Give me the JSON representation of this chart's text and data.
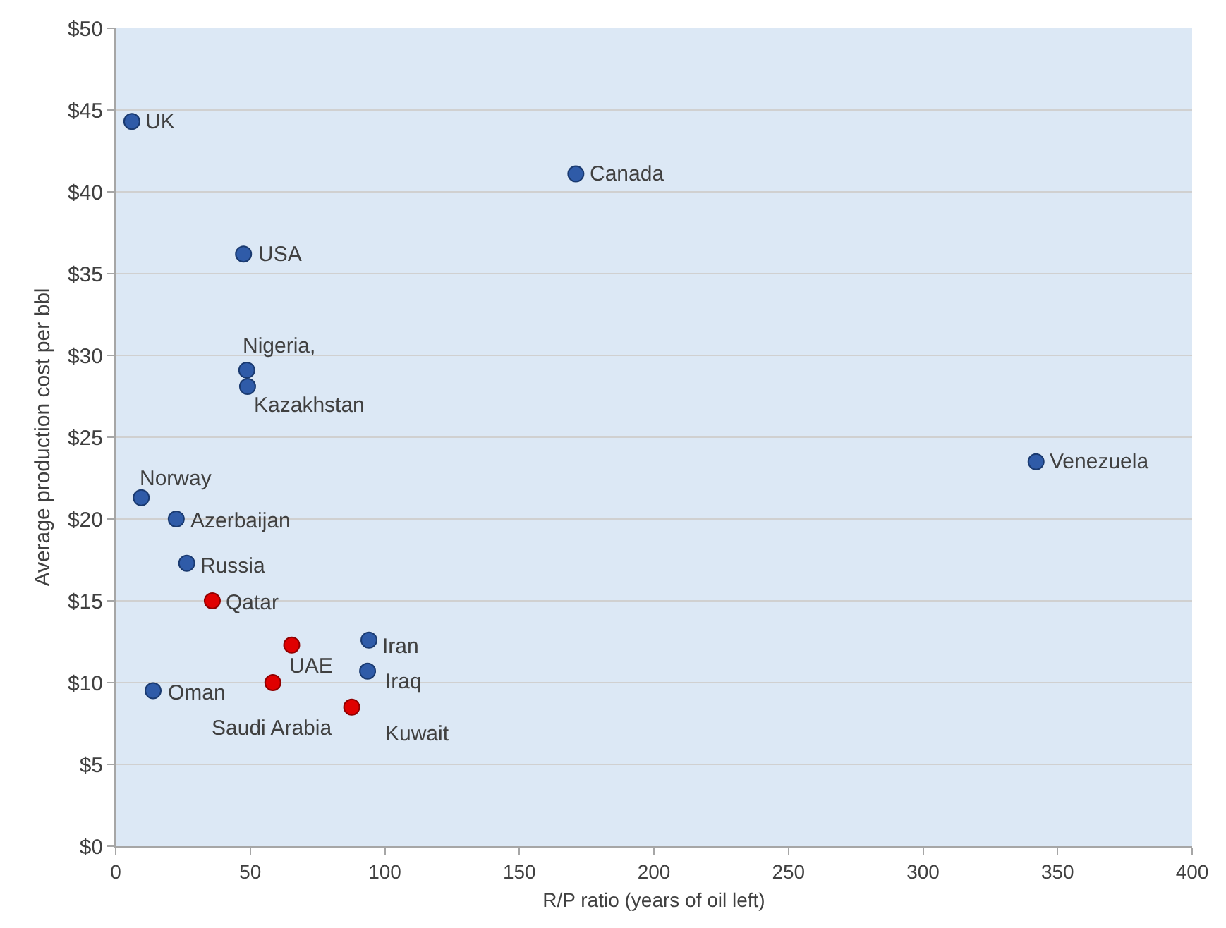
{
  "chart_data": {
    "type": "scatter",
    "xlabel": "R/P ratio (years of oil left)",
    "ylabel": "Average production cost per bbl",
    "series": [
      {
        "color": "#2f5ba8",
        "x": [
          6,
          171,
          47.5,
          48.7,
          49,
          342,
          9.5,
          22.5,
          26.4,
          94.1,
          93.6,
          13.9
        ],
        "values": [
          44.3,
          41.1,
          36.2,
          29.1,
          28.1,
          23.5,
          21.3,
          20.0,
          17.3,
          12.6,
          10.7,
          9.5
        ]
      },
      {
        "color": "#e00000",
        "x": [
          35.9,
          65.4,
          58.4,
          87.7
        ],
        "values": [
          15.0,
          12.3,
          10.0,
          8.5
        ]
      }
    ],
    "annotations": [
      {
        "text": "UK",
        "x": 6,
        "y": 44.3
      },
      {
        "text": "Canada",
        "x": 171,
        "y": 41.1
      },
      {
        "text": "USA",
        "x": 47.5,
        "y": 36.2
      },
      {
        "text": "Nigeria,",
        "x": 48.7,
        "y": 29.1
      },
      {
        "text": "Kazakhstan",
        "x": 49,
        "y": 28.1
      },
      {
        "text": "Venezuela",
        "x": 342,
        "y": 23.5
      },
      {
        "text": "Norway",
        "x": 9.5,
        "y": 21.3
      },
      {
        "text": "Azerbaijan",
        "x": 22.5,
        "y": 20.0
      },
      {
        "text": "Russia",
        "x": 26.4,
        "y": 17.3
      },
      {
        "text": "Iran",
        "x": 94.1,
        "y": 12.6
      },
      {
        "text": "Iraq",
        "x": 93.6,
        "y": 10.7
      },
      {
        "text": "Oman",
        "x": 13.9,
        "y": 9.5
      },
      {
        "text": "Qatar",
        "x": 35.9,
        "y": 15.0
      },
      {
        "text": "UAE",
        "x": 65.4,
        "y": 12.3
      },
      {
        "text": "Saudi Arabia",
        "x": 58.4,
        "y": 10.0
      },
      {
        "text": "Kuwait",
        "x": 87.7,
        "y": 8.5
      }
    ],
    "xlim": [
      0,
      400
    ],
    "xticks": [
      0,
      50,
      100,
      150,
      200,
      250,
      300,
      350,
      400
    ],
    "ylim": [
      0,
      50
    ],
    "yticks": [
      {
        "value": 0,
        "label": "$0"
      },
      {
        "value": 5,
        "label": "$5"
      },
      {
        "value": 10,
        "label": "$10"
      },
      {
        "value": 15,
        "label": "$15"
      },
      {
        "value": 20,
        "label": "$20"
      },
      {
        "value": 25,
        "label": "$25"
      },
      {
        "value": 30,
        "label": "$30"
      },
      {
        "value": 35,
        "label": "$35"
      },
      {
        "value": 40,
        "label": "$40"
      },
      {
        "value": 45,
        "label": "$45"
      },
      {
        "value": 50,
        "label": "$50"
      }
    ],
    "grid": "y",
    "marker": "circle"
  }
}
